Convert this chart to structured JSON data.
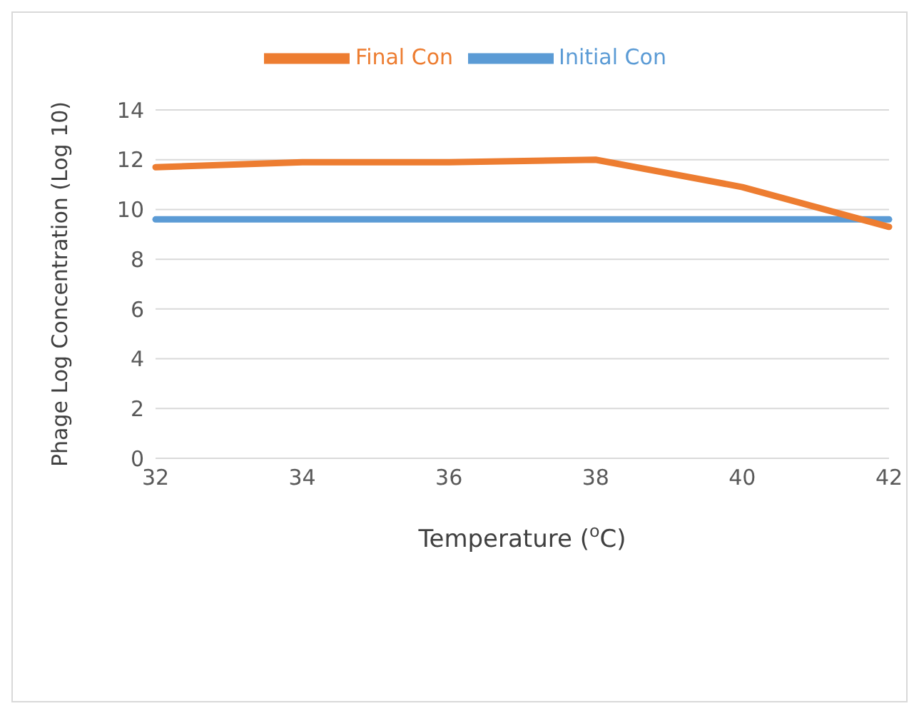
{
  "chart_data": {
    "type": "line",
    "xlabel": "Temperature ($^{o}$C)",
    "ylabel": "Phage Log Concentration  (Log 10)",
    "categories": [
      "32",
      "34",
      "36",
      "38",
      "40",
      "42"
    ],
    "series": [
      {
        "name": "Initial Con",
        "color": "#5b9bd5",
        "values": [
          9.6,
          9.6,
          9.6,
          9.6,
          9.6,
          9.6
        ]
      },
      {
        "name": "Final Con",
        "color": "#ed7d31",
        "values": [
          11.7,
          11.9,
          11.9,
          12.0,
          10.9,
          9.3
        ]
      }
    ],
    "ylim": [
      0,
      14
    ],
    "yticks": [
      0,
      2,
      4,
      6,
      8,
      10,
      12,
      14
    ],
    "grid": "y",
    "legend": "top",
    "marker": "none",
    "line_style": "solid"
  }
}
